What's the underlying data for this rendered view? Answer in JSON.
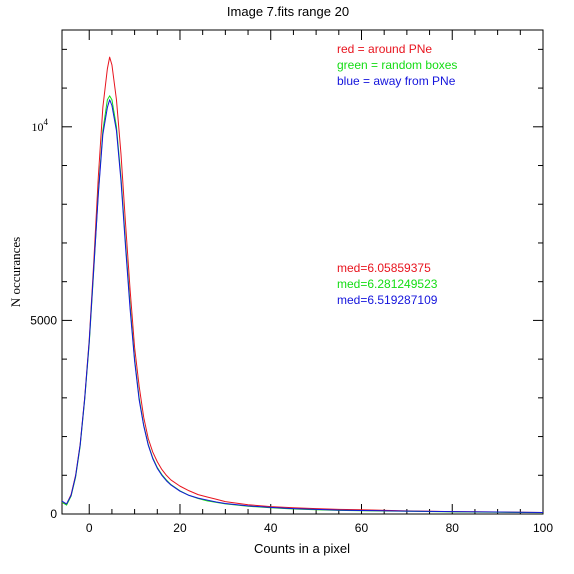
{
  "chart_data": {
    "type": "line",
    "title": "Image 7.fits   range 20",
    "xlabel": "Counts in a pixel",
    "ylabel": "N  occurances",
    "xlim": [
      -6,
      100
    ],
    "ylim": [
      0,
      12500
    ],
    "x_ticks": [
      {
        "value": 0,
        "label": "0"
      },
      {
        "value": 20,
        "label": "20"
      },
      {
        "value": 40,
        "label": "40"
      },
      {
        "value": 60,
        "label": "60"
      },
      {
        "value": 80,
        "label": "80"
      },
      {
        "value": 100,
        "label": "100"
      }
    ],
    "y_ticks": [
      {
        "value": 0,
        "label": "0"
      },
      {
        "value": 5000,
        "label": "5000"
      },
      {
        "value": 10000,
        "label": "10",
        "exponent": "4"
      }
    ],
    "grid": false,
    "legend_position": "top-right",
    "legend": [
      {
        "text": "red = around PNe",
        "color": "#e8141e"
      },
      {
        "text": "green = random boxes",
        "color": "#14dc14"
      },
      {
        "text": "blue = away from PNe",
        "color": "#1414dc"
      }
    ],
    "annotations": [
      {
        "text": "med=6.05859375",
        "color": "#e8141e"
      },
      {
        "text": "med=6.281249523",
        "color": "#14dc14"
      },
      {
        "text": "med=6.519287109",
        "color": "#1414dc"
      }
    ],
    "series": [
      {
        "color": "#e8141e",
        "x": [
          -6,
          -5,
          -4,
          -3,
          -2,
          -1,
          0,
          1,
          2,
          3,
          4,
          4.5,
          5,
          6,
          7,
          8,
          9,
          10,
          11,
          12,
          13,
          14,
          15,
          16,
          17,
          18,
          20,
          22,
          24,
          26,
          28,
          30,
          35,
          40,
          45,
          50,
          55,
          60,
          70,
          80,
          90,
          100
        ],
        "y": [
          300,
          250,
          500,
          1000,
          1800,
          3000,
          4500,
          6500,
          8700,
          10500,
          11500,
          11800,
          11600,
          10700,
          9300,
          7500,
          5800,
          4300,
          3300,
          2500,
          1950,
          1600,
          1350,
          1150,
          1000,
          880,
          720,
          600,
          500,
          440,
          380,
          320,
          240,
          190,
          160,
          140,
          120,
          110,
          80,
          60,
          50,
          40
        ]
      },
      {
        "color": "#14dc14",
        "x": [
          -6,
          -5,
          -4,
          -3,
          -2,
          -1,
          0,
          1,
          2,
          3,
          4,
          4.5,
          5,
          6,
          7,
          8,
          9,
          10,
          11,
          12,
          13,
          14,
          15,
          16,
          17,
          18,
          20,
          22,
          24,
          26,
          28,
          30,
          35,
          40,
          45,
          50,
          55,
          60,
          70,
          80,
          90,
          100
        ],
        "y": [
          300,
          230,
          460,
          950,
          1750,
          2950,
          4400,
          6300,
          8300,
          9900,
          10700,
          10800,
          10700,
          10000,
          8700,
          7000,
          5400,
          4000,
          3000,
          2300,
          1800,
          1450,
          1200,
          1020,
          880,
          760,
          600,
          480,
          400,
          340,
          300,
          260,
          200,
          160,
          130,
          110,
          95,
          85,
          70,
          55,
          45,
          35
        ]
      },
      {
        "color": "#1414dc",
        "x": [
          -6,
          -5,
          -4,
          -3,
          -2,
          -1,
          0,
          1,
          2,
          3,
          4,
          4.5,
          5,
          6,
          7,
          8,
          9,
          10,
          11,
          12,
          13,
          14,
          15,
          16,
          17,
          18,
          20,
          22,
          24,
          26,
          28,
          30,
          35,
          40,
          45,
          50,
          55,
          60,
          70,
          80,
          90,
          100
        ],
        "y": [
          330,
          260,
          480,
          980,
          1780,
          2980,
          4450,
          6350,
          8250,
          9800,
          10500,
          10700,
          10550,
          9900,
          8600,
          6900,
          5300,
          3950,
          2950,
          2280,
          1780,
          1430,
          1180,
          1000,
          860,
          750,
          590,
          480,
          410,
          360,
          310,
          270,
          210,
          170,
          140,
          120,
          100,
          90,
          75,
          60,
          50,
          40
        ]
      }
    ]
  }
}
